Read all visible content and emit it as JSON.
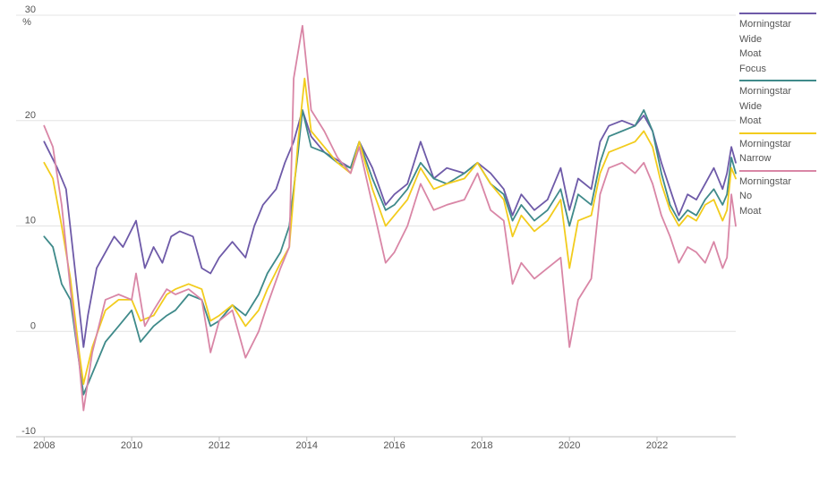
{
  "chart_data": {
    "type": "line",
    "title": "",
    "xlabel": "",
    "ylabel": "%",
    "ylim": [
      -10,
      30
    ],
    "yticks": [
      -10,
      0,
      10,
      20,
      30
    ],
    "xlim": [
      2007.85,
      2023.8
    ],
    "xticks": [
      2008,
      2010,
      2012,
      2014,
      2016,
      2018,
      2020,
      2022
    ],
    "grid": "horizontal",
    "legend_position": "right",
    "series": [
      {
        "name": "Morningstar\nWide\nMoat\nFocus",
        "color": "#6e5aa8",
        "points": [
          [
            2008.0,
            18.0
          ],
          [
            2008.3,
            15.5
          ],
          [
            2008.5,
            13.5
          ],
          [
            2008.7,
            6.0
          ],
          [
            2008.9,
            -1.5
          ],
          [
            2009.0,
            1.5
          ],
          [
            2009.2,
            6.0
          ],
          [
            2009.4,
            7.5
          ],
          [
            2009.6,
            9.0
          ],
          [
            2009.8,
            8.0
          ],
          [
            2010.1,
            10.5
          ],
          [
            2010.3,
            6.0
          ],
          [
            2010.5,
            8.0
          ],
          [
            2010.7,
            6.5
          ],
          [
            2010.9,
            9.0
          ],
          [
            2011.1,
            9.5
          ],
          [
            2011.4,
            9.0
          ],
          [
            2011.6,
            6.0
          ],
          [
            2011.8,
            5.5
          ],
          [
            2012.0,
            7.0
          ],
          [
            2012.3,
            8.5
          ],
          [
            2012.6,
            7.0
          ],
          [
            2012.8,
            10.0
          ],
          [
            2013.0,
            12.0
          ],
          [
            2013.3,
            13.5
          ],
          [
            2013.5,
            16.0
          ],
          [
            2013.7,
            18.0
          ],
          [
            2013.9,
            21.0
          ],
          [
            2014.1,
            18.5
          ],
          [
            2014.4,
            17.0
          ],
          [
            2014.6,
            16.5
          ],
          [
            2014.8,
            16.0
          ],
          [
            2015.0,
            15.5
          ],
          [
            2015.2,
            18.0
          ],
          [
            2015.5,
            15.5
          ],
          [
            2015.8,
            12.0
          ],
          [
            2016.0,
            13.0
          ],
          [
            2016.3,
            14.0
          ],
          [
            2016.6,
            18.0
          ],
          [
            2016.9,
            14.5
          ],
          [
            2017.2,
            15.5
          ],
          [
            2017.6,
            15.0
          ],
          [
            2017.9,
            16.0
          ],
          [
            2018.2,
            15.0
          ],
          [
            2018.5,
            13.5
          ],
          [
            2018.7,
            11.0
          ],
          [
            2018.9,
            13.0
          ],
          [
            2019.2,
            11.5
          ],
          [
            2019.5,
            12.5
          ],
          [
            2019.8,
            15.5
          ],
          [
            2020.0,
            11.5
          ],
          [
            2020.2,
            14.5
          ],
          [
            2020.5,
            13.5
          ],
          [
            2020.7,
            18.0
          ],
          [
            2020.9,
            19.5
          ],
          [
            2021.2,
            20.0
          ],
          [
            2021.5,
            19.5
          ],
          [
            2021.7,
            20.5
          ],
          [
            2021.9,
            19.0
          ],
          [
            2022.1,
            16.0
          ],
          [
            2022.3,
            13.5
          ],
          [
            2022.5,
            11.0
          ],
          [
            2022.7,
            13.0
          ],
          [
            2022.9,
            12.5
          ],
          [
            2023.1,
            14.0
          ],
          [
            2023.3,
            15.5
          ],
          [
            2023.5,
            13.5
          ],
          [
            2023.6,
            15.0
          ],
          [
            2023.7,
            17.5
          ],
          [
            2023.8,
            16.0
          ]
        ]
      },
      {
        "name": "Morningstar\nWide\nMoat",
        "color": "#3f8a8a",
        "points": [
          [
            2008.0,
            9.0
          ],
          [
            2008.2,
            8.0
          ],
          [
            2008.4,
            4.5
          ],
          [
            2008.6,
            3.0
          ],
          [
            2008.8,
            -3.0
          ],
          [
            2008.9,
            -6.0
          ],
          [
            2009.1,
            -4.0
          ],
          [
            2009.4,
            -1.0
          ],
          [
            2009.7,
            0.5
          ],
          [
            2010.0,
            2.0
          ],
          [
            2010.2,
            -1.0
          ],
          [
            2010.5,
            0.5
          ],
          [
            2010.8,
            1.5
          ],
          [
            2011.0,
            2.0
          ],
          [
            2011.3,
            3.5
          ],
          [
            2011.6,
            3.0
          ],
          [
            2011.8,
            0.5
          ],
          [
            2012.0,
            1.0
          ],
          [
            2012.3,
            2.5
          ],
          [
            2012.6,
            1.5
          ],
          [
            2012.9,
            3.5
          ],
          [
            2013.1,
            5.5
          ],
          [
            2013.4,
            7.5
          ],
          [
            2013.6,
            10.0
          ],
          [
            2013.8,
            17.0
          ],
          [
            2013.9,
            21.0
          ],
          [
            2014.1,
            17.5
          ],
          [
            2014.4,
            17.0
          ],
          [
            2014.7,
            16.0
          ],
          [
            2015.0,
            15.5
          ],
          [
            2015.2,
            18.0
          ],
          [
            2015.5,
            14.5
          ],
          [
            2015.8,
            11.5
          ],
          [
            2016.0,
            12.0
          ],
          [
            2016.3,
            13.5
          ],
          [
            2016.6,
            16.0
          ],
          [
            2016.9,
            14.5
          ],
          [
            2017.2,
            14.0
          ],
          [
            2017.6,
            15.0
          ],
          [
            2017.9,
            16.0
          ],
          [
            2018.2,
            14.0
          ],
          [
            2018.5,
            13.0
          ],
          [
            2018.7,
            10.5
          ],
          [
            2018.9,
            12.0
          ],
          [
            2019.2,
            10.5
          ],
          [
            2019.5,
            11.5
          ],
          [
            2019.8,
            13.5
          ],
          [
            2020.0,
            10.0
          ],
          [
            2020.2,
            13.0
          ],
          [
            2020.5,
            12.0
          ],
          [
            2020.7,
            16.0
          ],
          [
            2020.9,
            18.5
          ],
          [
            2021.2,
            19.0
          ],
          [
            2021.5,
            19.5
          ],
          [
            2021.7,
            21.0
          ],
          [
            2021.9,
            19.0
          ],
          [
            2022.1,
            15.0
          ],
          [
            2022.3,
            12.0
          ],
          [
            2022.5,
            10.5
          ],
          [
            2022.7,
            11.5
          ],
          [
            2022.9,
            11.0
          ],
          [
            2023.1,
            12.5
          ],
          [
            2023.3,
            13.5
          ],
          [
            2023.5,
            12.0
          ],
          [
            2023.6,
            13.0
          ],
          [
            2023.7,
            16.5
          ],
          [
            2023.8,
            15.0
          ]
        ]
      },
      {
        "name": "Morningstar\nNarrow",
        "color": "#f2cc1d",
        "points": [
          [
            2008.0,
            16.0
          ],
          [
            2008.2,
            14.5
          ],
          [
            2008.4,
            10.0
          ],
          [
            2008.6,
            5.0
          ],
          [
            2008.8,
            -2.0
          ],
          [
            2008.9,
            -5.0
          ],
          [
            2009.1,
            -1.5
          ],
          [
            2009.4,
            2.0
          ],
          [
            2009.7,
            3.0
          ],
          [
            2010.0,
            3.0
          ],
          [
            2010.2,
            1.0
          ],
          [
            2010.5,
            1.5
          ],
          [
            2010.8,
            3.5
          ],
          [
            2011.0,
            4.0
          ],
          [
            2011.3,
            4.5
          ],
          [
            2011.6,
            4.0
          ],
          [
            2011.8,
            1.0
          ],
          [
            2012.0,
            1.5
          ],
          [
            2012.3,
            2.5
          ],
          [
            2012.6,
            0.5
          ],
          [
            2012.9,
            2.0
          ],
          [
            2013.1,
            4.0
          ],
          [
            2013.4,
            6.5
          ],
          [
            2013.6,
            8.0
          ],
          [
            2013.8,
            18.0
          ],
          [
            2013.95,
            24.0
          ],
          [
            2014.1,
            19.0
          ],
          [
            2014.4,
            17.5
          ],
          [
            2014.7,
            16.0
          ],
          [
            2015.0,
            15.0
          ],
          [
            2015.2,
            18.0
          ],
          [
            2015.5,
            13.5
          ],
          [
            2015.8,
            10.0
          ],
          [
            2016.0,
            11.0
          ],
          [
            2016.3,
            12.5
          ],
          [
            2016.6,
            15.5
          ],
          [
            2016.9,
            13.5
          ],
          [
            2017.2,
            14.0
          ],
          [
            2017.6,
            14.5
          ],
          [
            2017.9,
            16.0
          ],
          [
            2018.2,
            14.0
          ],
          [
            2018.5,
            12.5
          ],
          [
            2018.7,
            9.0
          ],
          [
            2018.9,
            11.0
          ],
          [
            2019.2,
            9.5
          ],
          [
            2019.5,
            10.5
          ],
          [
            2019.8,
            12.5
          ],
          [
            2020.0,
            6.0
          ],
          [
            2020.2,
            10.5
          ],
          [
            2020.5,
            11.0
          ],
          [
            2020.7,
            15.0
          ],
          [
            2020.9,
            17.0
          ],
          [
            2021.2,
            17.5
          ],
          [
            2021.5,
            18.0
          ],
          [
            2021.7,
            19.0
          ],
          [
            2021.9,
            17.5
          ],
          [
            2022.1,
            14.0
          ],
          [
            2022.3,
            11.5
          ],
          [
            2022.5,
            10.0
          ],
          [
            2022.7,
            11.0
          ],
          [
            2022.9,
            10.5
          ],
          [
            2023.1,
            12.0
          ],
          [
            2023.3,
            12.5
          ],
          [
            2023.5,
            10.5
          ],
          [
            2023.6,
            11.5
          ],
          [
            2023.7,
            15.5
          ],
          [
            2023.8,
            14.5
          ]
        ]
      },
      {
        "name": "Morningstar\nNo\nMoat",
        "color": "#d986a6",
        "points": [
          [
            2008.0,
            19.5
          ],
          [
            2008.2,
            17.5
          ],
          [
            2008.4,
            12.0
          ],
          [
            2008.6,
            4.0
          ],
          [
            2008.8,
            -3.0
          ],
          [
            2008.9,
            -7.5
          ],
          [
            2009.1,
            -2.0
          ],
          [
            2009.4,
            3.0
          ],
          [
            2009.7,
            3.5
          ],
          [
            2010.0,
            3.0
          ],
          [
            2010.1,
            5.5
          ],
          [
            2010.3,
            0.5
          ],
          [
            2010.5,
            2.0
          ],
          [
            2010.8,
            4.0
          ],
          [
            2011.0,
            3.5
          ],
          [
            2011.3,
            4.0
          ],
          [
            2011.6,
            3.0
          ],
          [
            2011.8,
            -2.0
          ],
          [
            2012.0,
            1.0
          ],
          [
            2012.3,
            2.0
          ],
          [
            2012.6,
            -2.5
          ],
          [
            2012.9,
            0.0
          ],
          [
            2013.1,
            2.5
          ],
          [
            2013.4,
            6.0
          ],
          [
            2013.6,
            8.0
          ],
          [
            2013.7,
            24.0
          ],
          [
            2013.9,
            29.0
          ],
          [
            2014.1,
            21.0
          ],
          [
            2014.4,
            19.0
          ],
          [
            2014.7,
            16.5
          ],
          [
            2015.0,
            15.0
          ],
          [
            2015.2,
            17.5
          ],
          [
            2015.5,
            12.0
          ],
          [
            2015.8,
            6.5
          ],
          [
            2016.0,
            7.5
          ],
          [
            2016.3,
            10.0
          ],
          [
            2016.6,
            14.0
          ],
          [
            2016.9,
            11.5
          ],
          [
            2017.2,
            12.0
          ],
          [
            2017.6,
            12.5
          ],
          [
            2017.9,
            15.0
          ],
          [
            2018.2,
            11.5
          ],
          [
            2018.5,
            10.5
          ],
          [
            2018.7,
            4.5
          ],
          [
            2018.9,
            6.5
          ],
          [
            2019.2,
            5.0
          ],
          [
            2019.5,
            6.0
          ],
          [
            2019.8,
            7.0
          ],
          [
            2020.0,
            -1.5
          ],
          [
            2020.2,
            3.0
          ],
          [
            2020.5,
            5.0
          ],
          [
            2020.7,
            13.0
          ],
          [
            2020.9,
            15.5
          ],
          [
            2021.2,
            16.0
          ],
          [
            2021.5,
            15.0
          ],
          [
            2021.7,
            16.0
          ],
          [
            2021.9,
            14.0
          ],
          [
            2022.1,
            11.0
          ],
          [
            2022.3,
            9.0
          ],
          [
            2022.5,
            6.5
          ],
          [
            2022.7,
            8.0
          ],
          [
            2022.9,
            7.5
          ],
          [
            2023.1,
            6.5
          ],
          [
            2023.3,
            8.5
          ],
          [
            2023.5,
            6.0
          ],
          [
            2023.6,
            7.0
          ],
          [
            2023.7,
            13.0
          ],
          [
            2023.8,
            10.0
          ]
        ]
      }
    ]
  }
}
